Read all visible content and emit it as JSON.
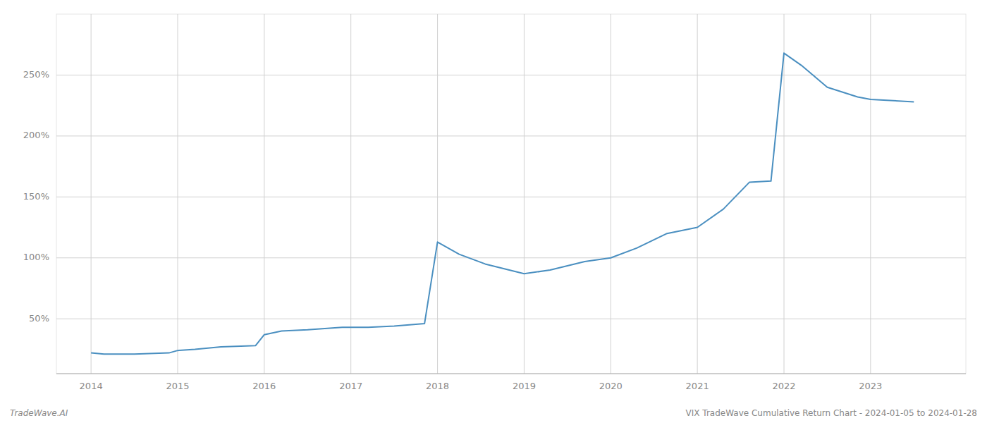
{
  "chart_data": {
    "type": "line",
    "title": "VIX TradeWave Cumulative Return Chart - 2024-01-05 to 2024-01-28",
    "annotations": [
      "TradeWave.AI"
    ],
    "x": [
      2014.0,
      2014.15,
      2014.5,
      2014.9,
      2015.0,
      2015.2,
      2015.5,
      2015.9,
      2016.0,
      2016.2,
      2016.5,
      2016.9,
      2017.0,
      2017.2,
      2017.5,
      2017.85,
      2018.0,
      2018.25,
      2018.55,
      2019.0,
      2019.3,
      2019.7,
      2020.0,
      2020.3,
      2020.65,
      2021.0,
      2021.3,
      2021.6,
      2021.85,
      2022.0,
      2022.2,
      2022.5,
      2022.85,
      2023.0,
      2023.5
    ],
    "values": [
      22,
      21,
      21,
      22,
      24,
      25,
      27,
      28,
      37,
      40,
      41,
      43,
      43,
      43,
      44,
      46,
      113,
      103,
      95,
      87,
      90,
      97,
      100,
      108,
      120,
      125,
      140,
      162,
      163,
      268,
      258,
      240,
      232,
      230,
      228
    ],
    "color": "#4a8fc0",
    "xlim": [
      2013.6,
      2024.1
    ],
    "xticks": [
      2014,
      2015,
      2016,
      2017,
      2018,
      2019,
      2020,
      2021,
      2022,
      2023
    ],
    "ylim": [
      5,
      300
    ],
    "yticks": [
      {
        "value": 50,
        "label": "50%"
      },
      {
        "value": 100,
        "label": "100%"
      },
      {
        "value": 150,
        "label": "150%"
      },
      {
        "value": 200,
        "label": "200%"
      },
      {
        "value": 250,
        "label": "250%"
      }
    ],
    "grid": true
  }
}
